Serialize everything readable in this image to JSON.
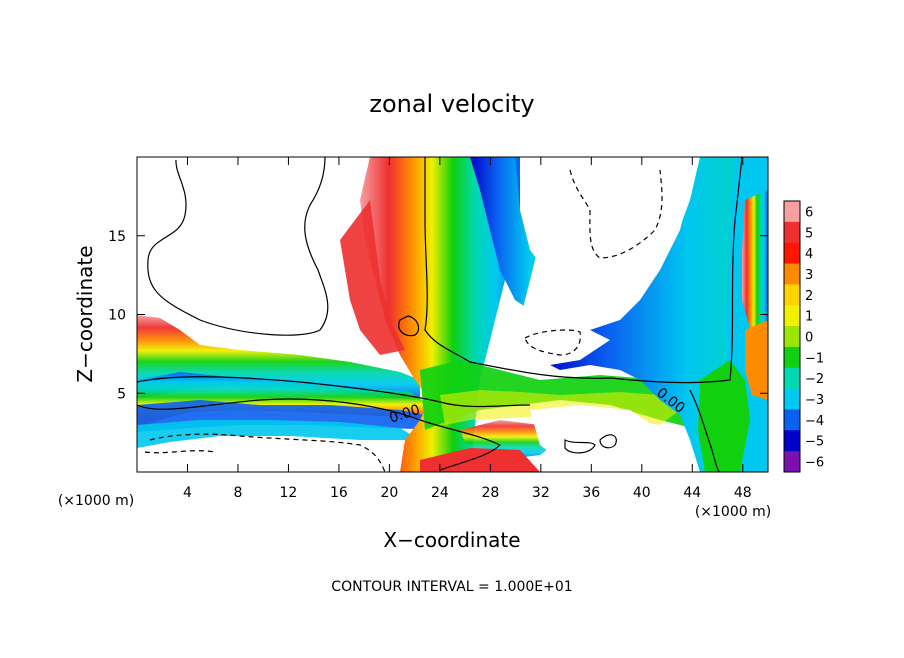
{
  "chart_data": {
    "type": "heatmap",
    "title": "zonal velocity",
    "xlabel": "X−coordinate",
    "ylabel": "Z−coordinate",
    "x_unit_left": "(×1000 m)",
    "x_unit_right": "(×1000 m)",
    "xlim": [
      0,
      50
    ],
    "ylim": [
      0,
      20
    ],
    "x_ticks": [
      4,
      8,
      12,
      16,
      20,
      24,
      28,
      32,
      36,
      40,
      44,
      48
    ],
    "y_ticks": [
      5,
      10,
      15
    ],
    "colorbar_levels": [
      "6",
      "5",
      "4",
      "3",
      "2",
      "1",
      "0",
      "−1",
      "−2",
      "−3",
      "−4",
      "−5",
      "−6"
    ],
    "colorbar_colors": [
      "#f6a0a0",
      "#ee3030",
      "#ff1500",
      "#ff8c00",
      "#ffd200",
      "#f0f000",
      "#9ae600",
      "#10d010",
      "#00d8b0",
      "#00c8f0",
      "#0a60f0",
      "#0000c8",
      "#7a10b0"
    ],
    "contour_labels": [
      "0.00",
      "0.00"
    ],
    "footer": "CONTOUR INTERVAL = 1.000E+01"
  }
}
